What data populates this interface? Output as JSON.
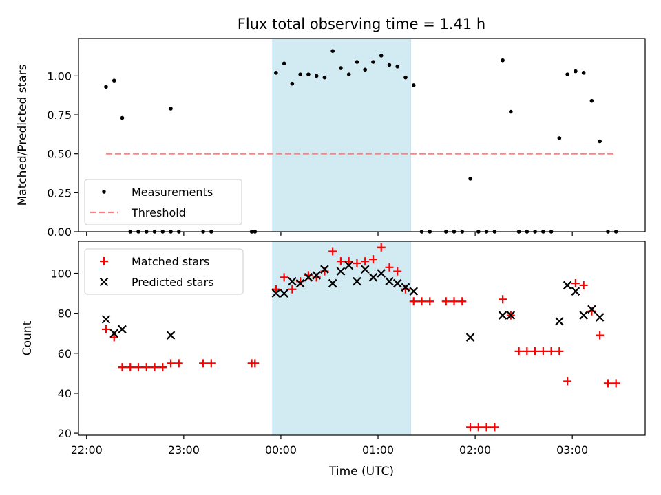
{
  "chart_data": [
    {
      "type": "scatter",
      "title": "Flux total observing time = 1.41 h",
      "xlabel": "",
      "ylabel": "Matched/Predicted stars",
      "x_range": [
        "21:55",
        "03:45"
      ],
      "ylim": [
        0,
        1.24
      ],
      "yticks": [
        "0.00",
        "0.25",
        "0.50",
        "0.75",
        "1.00"
      ],
      "shaded_interval": [
        "23:55",
        "01:20"
      ],
      "shade_color": "#add8e6",
      "legend_position": "lower-left",
      "series": [
        {
          "name": "Measurements",
          "marker": "dot",
          "color": "#000000",
          "x": [
            "22:12",
            "22:17",
            "22:22",
            "22:27",
            "22:32",
            "22:37",
            "22:42",
            "22:47",
            "22:52",
            "22:52",
            "22:57",
            "23:12",
            "23:17",
            "23:42",
            "23:44",
            "23:57",
            "24:02",
            "24:07",
            "24:12",
            "24:17",
            "24:22",
            "24:27",
            "24:32",
            "24:37",
            "24:42",
            "24:47",
            "24:52",
            "24:57",
            "25:02",
            "25:07",
            "25:12",
            "25:17",
            "25:22",
            "25:27",
            "25:32",
            "25:42",
            "25:47",
            "25:52",
            "25:57",
            "26:02",
            "26:07",
            "26:12",
            "26:17",
            "26:22",
            "26:27",
            "26:32",
            "26:37",
            "26:42",
            "26:47",
            "26:52",
            "26:57",
            "27:02",
            "27:07",
            "27:12",
            "27:17",
            "27:22",
            "27:27"
          ],
          "y": [
            0.93,
            0.97,
            0.73,
            0.0,
            0.0,
            0.0,
            0.0,
            0.0,
            0.0,
            0.79,
            0.0,
            0.0,
            0.0,
            0.0,
            0.0,
            1.02,
            1.08,
            0.95,
            1.01,
            1.01,
            1.0,
            0.99,
            1.16,
            1.05,
            1.01,
            1.09,
            1.04,
            1.09,
            1.13,
            1.07,
            1.06,
            0.99,
            0.94,
            0.0,
            0.0,
            0.0,
            0.0,
            0.0,
            0.34,
            0.0,
            0.0,
            0.0,
            1.1,
            0.77,
            0.0,
            0.0,
            0.0,
            0.0,
            0.0,
            0.6,
            1.01,
            1.03,
            1.02,
            0.84,
            0.58,
            0.0,
            0.0
          ]
        },
        {
          "name": "Threshold",
          "style": "dashed",
          "color": "#ff8080",
          "x": [
            "22:12",
            "27:27"
          ],
          "y": [
            0.5,
            0.5
          ]
        }
      ]
    },
    {
      "type": "scatter",
      "xlabel": "Time (UTC)",
      "ylabel": "Count",
      "x_range": [
        "21:55",
        "03:45"
      ],
      "xticks": [
        "22:00",
        "23:00",
        "00:00",
        "01:00",
        "02:00",
        "03:00"
      ],
      "ylim": [
        19,
        116
      ],
      "yticks": [
        "20",
        "40",
        "60",
        "80",
        "100"
      ],
      "shaded_interval": [
        "23:55",
        "01:20"
      ],
      "shade_color": "#add8e6",
      "legend_position": "upper-left",
      "series": [
        {
          "name": "Matched stars",
          "marker": "plus",
          "color": "#ff0000",
          "x": [
            "22:12",
            "22:17",
            "22:22",
            "22:27",
            "22:32",
            "22:37",
            "22:42",
            "22:47",
            "22:52",
            "22:57",
            "23:12",
            "23:17",
            "23:42",
            "23:44",
            "23:57",
            "24:02",
            "24:07",
            "24:12",
            "24:17",
            "24:22",
            "24:27",
            "24:32",
            "24:37",
            "24:42",
            "24:47",
            "24:52",
            "24:57",
            "25:02",
            "25:07",
            "25:12",
            "25:17",
            "25:22",
            "25:27",
            "25:32",
            "25:42",
            "25:47",
            "25:52",
            "25:57",
            "26:02",
            "26:07",
            "26:12",
            "26:17",
            "26:22",
            "26:27",
            "26:32",
            "26:37",
            "26:42",
            "26:47",
            "26:52",
            "26:57",
            "27:02",
            "27:07",
            "27:12",
            "27:17",
            "27:22",
            "27:27"
          ],
          "y": [
            72,
            68,
            53,
            53,
            53,
            53,
            53,
            53,
            55,
            55,
            55,
            55,
            55,
            55,
            92,
            98,
            92,
            96,
            99,
            98,
            101,
            111,
            106,
            106,
            105,
            106,
            107,
            113,
            103,
            101,
            92,
            86,
            86,
            86,
            86,
            86,
            86,
            23,
            23,
            23,
            23,
            87,
            79,
            61,
            61,
            61,
            61,
            61,
            61,
            46,
            95,
            94,
            81,
            69,
            45,
            45
          ]
        },
        {
          "name": "Predicted stars",
          "marker": "x",
          "color": "#000000",
          "x": [
            "22:12",
            "22:17",
            "22:22",
            "22:52",
            "23:57",
            "24:02",
            "24:07",
            "24:12",
            "24:17",
            "24:22",
            "24:27",
            "24:32",
            "24:37",
            "24:42",
            "24:47",
            "24:52",
            "24:57",
            "25:02",
            "25:07",
            "25:12",
            "25:17",
            "25:22",
            "25:57",
            "26:17",
            "26:22",
            "26:52",
            "26:57",
            "27:02",
            "27:07",
            "27:12",
            "27:17"
          ],
          "y": [
            77,
            70,
            72,
            69,
            90,
            90,
            96,
            95,
            98,
            99,
            102,
            95,
            101,
            104,
            96,
            102,
            98,
            100,
            96,
            95,
            93,
            91,
            68,
            79,
            79,
            76,
            94,
            91,
            79,
            82,
            78
          ]
        }
      ]
    }
  ]
}
